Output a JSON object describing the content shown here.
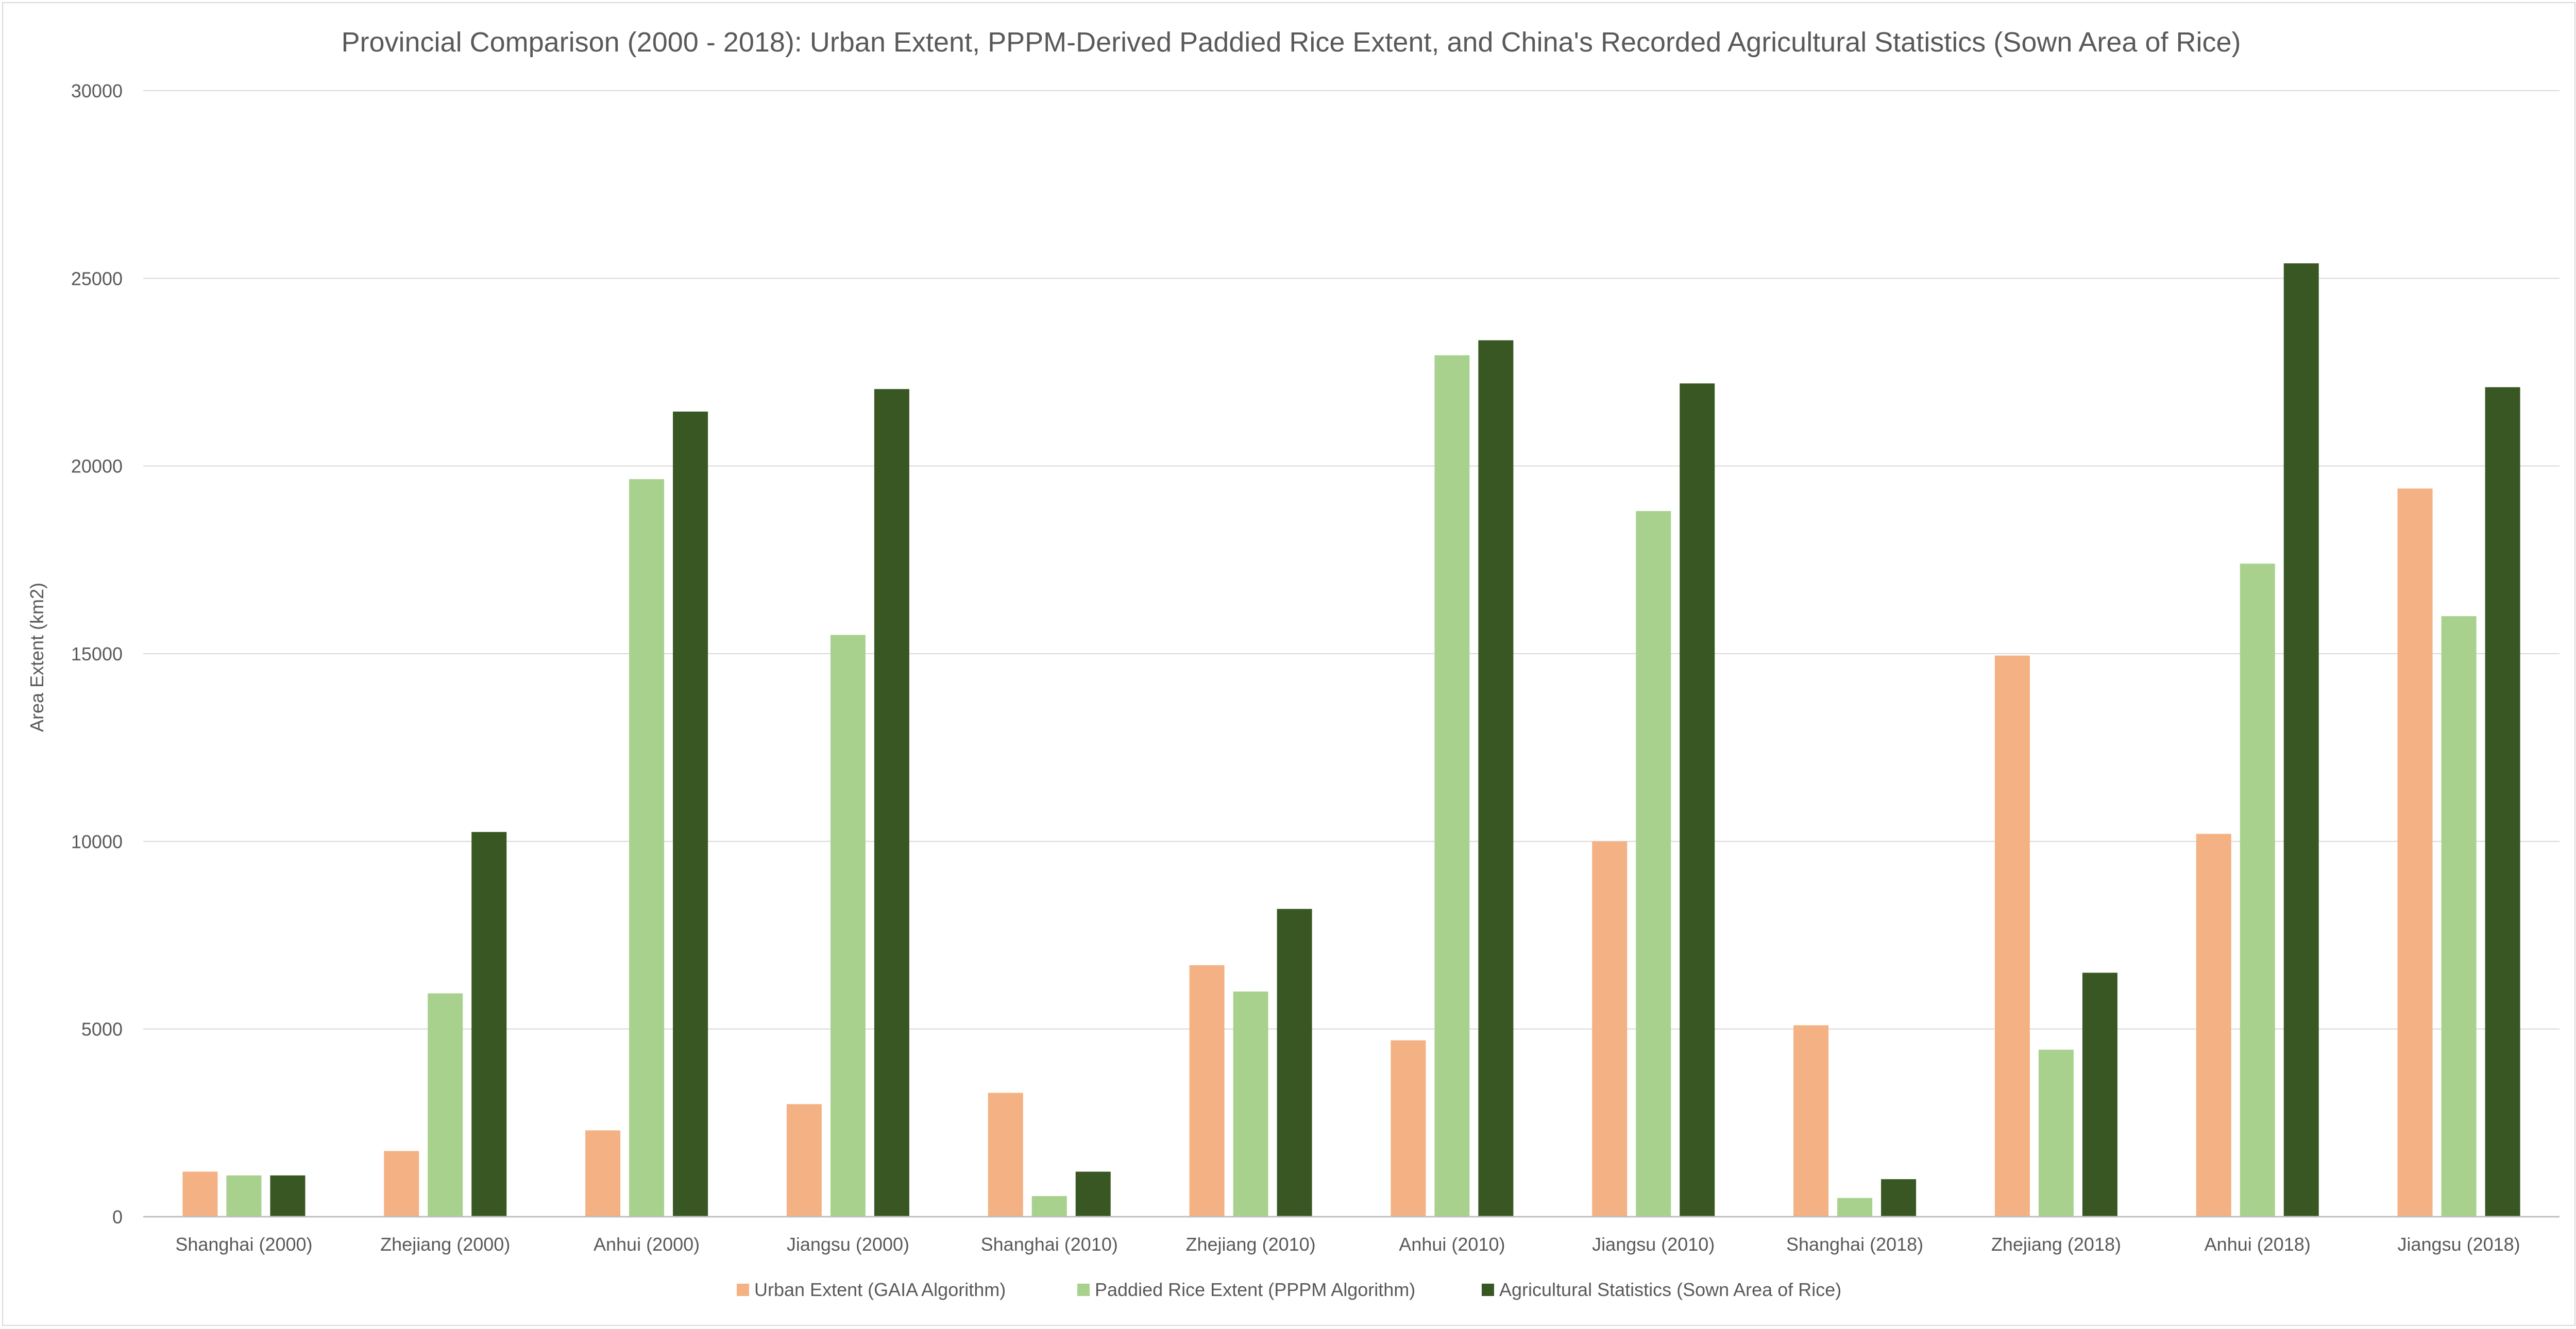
{
  "chart_data": {
    "type": "bar",
    "title": "Provincial Comparison (2000 - 2018): Urban Extent, PPPM-Derived Paddied Rice Extent, and China's Recorded Agricultural Statistics (Sown Area of Rice)",
    "xlabel": "",
    "ylabel": "Area Extent (km2)",
    "ylim": [
      0,
      30000
    ],
    "yticks": [
      "0",
      "5000",
      "10000",
      "15000",
      "20000",
      "25000",
      "30000"
    ],
    "grid": true,
    "legend_position": "bottom",
    "categories": [
      "Shanghai (2000)",
      "Zhejiang (2000)",
      "Anhui (2000)",
      "Jiangsu (2000)",
      "Shanghai (2010)",
      "Zhejiang (2010)",
      "Anhui (2010)",
      "Jiangsu (2010)",
      "Shanghai (2018)",
      "Zhejiang (2018)",
      "Anhui (2018)",
      "Jiangsu (2018)"
    ],
    "series": [
      {
        "name": "Urban Extent (GAIA Algorithm)",
        "color": "#F4B183",
        "values": [
          1200,
          1750,
          2300,
          3000,
          3300,
          6700,
          4700,
          10000,
          5100,
          14950,
          10200,
          19400
        ]
      },
      {
        "name": "Paddied Rice Extent (PPPM Algorithm)",
        "color": "#A9D18E",
        "values": [
          1100,
          5950,
          19650,
          15500,
          550,
          6000,
          22950,
          18800,
          500,
          4450,
          17400,
          16000
        ]
      },
      {
        "name": "Agricultural Statistics (Sown Area of Rice)",
        "color": "#385723",
        "values": [
          1100,
          10250,
          21450,
          22050,
          1200,
          8200,
          23350,
          22200,
          1000,
          6500,
          25400,
          22100
        ]
      }
    ]
  }
}
